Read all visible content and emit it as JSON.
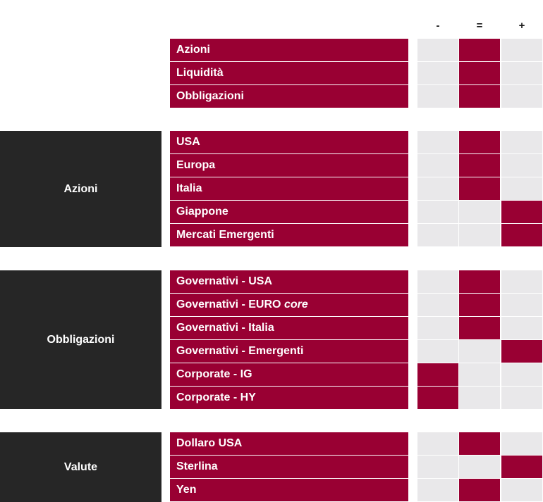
{
  "columns": [
    "-",
    "=",
    "+"
  ],
  "sections": [
    {
      "title": "",
      "rows": [
        {
          "label": "Azioni",
          "rating": 1
        },
        {
          "label": "Liquidità",
          "rating": 1
        },
        {
          "label": "Obbligazioni",
          "rating": 1
        }
      ]
    },
    {
      "title": "Azioni",
      "rows": [
        {
          "label": "USA",
          "rating": 1
        },
        {
          "label": "Europa",
          "rating": 1
        },
        {
          "label": "Italia",
          "rating": 1
        },
        {
          "label": "Giappone",
          "rating": 2
        },
        {
          "label": "Mercati Emergenti",
          "rating": 2
        }
      ]
    },
    {
      "title": "Obbligazioni",
      "rows": [
        {
          "label": "Governativi - USA",
          "rating": 1
        },
        {
          "label": "Governativi - EURO",
          "label_italic": "core",
          "rating": 1
        },
        {
          "label": "Governativi - Italia",
          "rating": 1
        },
        {
          "label": "Governativi - Emergenti",
          "rating": 2
        },
        {
          "label": "Corporate - IG",
          "rating": 0
        },
        {
          "label": "Corporate - HY",
          "rating": 0
        }
      ]
    },
    {
      "title": "Valute",
      "rows": [
        {
          "label": "Dollaro USA",
          "rating": 1
        },
        {
          "label": "Sterlina",
          "rating": 2
        },
        {
          "label": "Yen",
          "rating": 1
        }
      ]
    }
  ],
  "colors": {
    "accent": "#990033",
    "panel": "#262626",
    "empty_cell": "#e9e8ea"
  }
}
